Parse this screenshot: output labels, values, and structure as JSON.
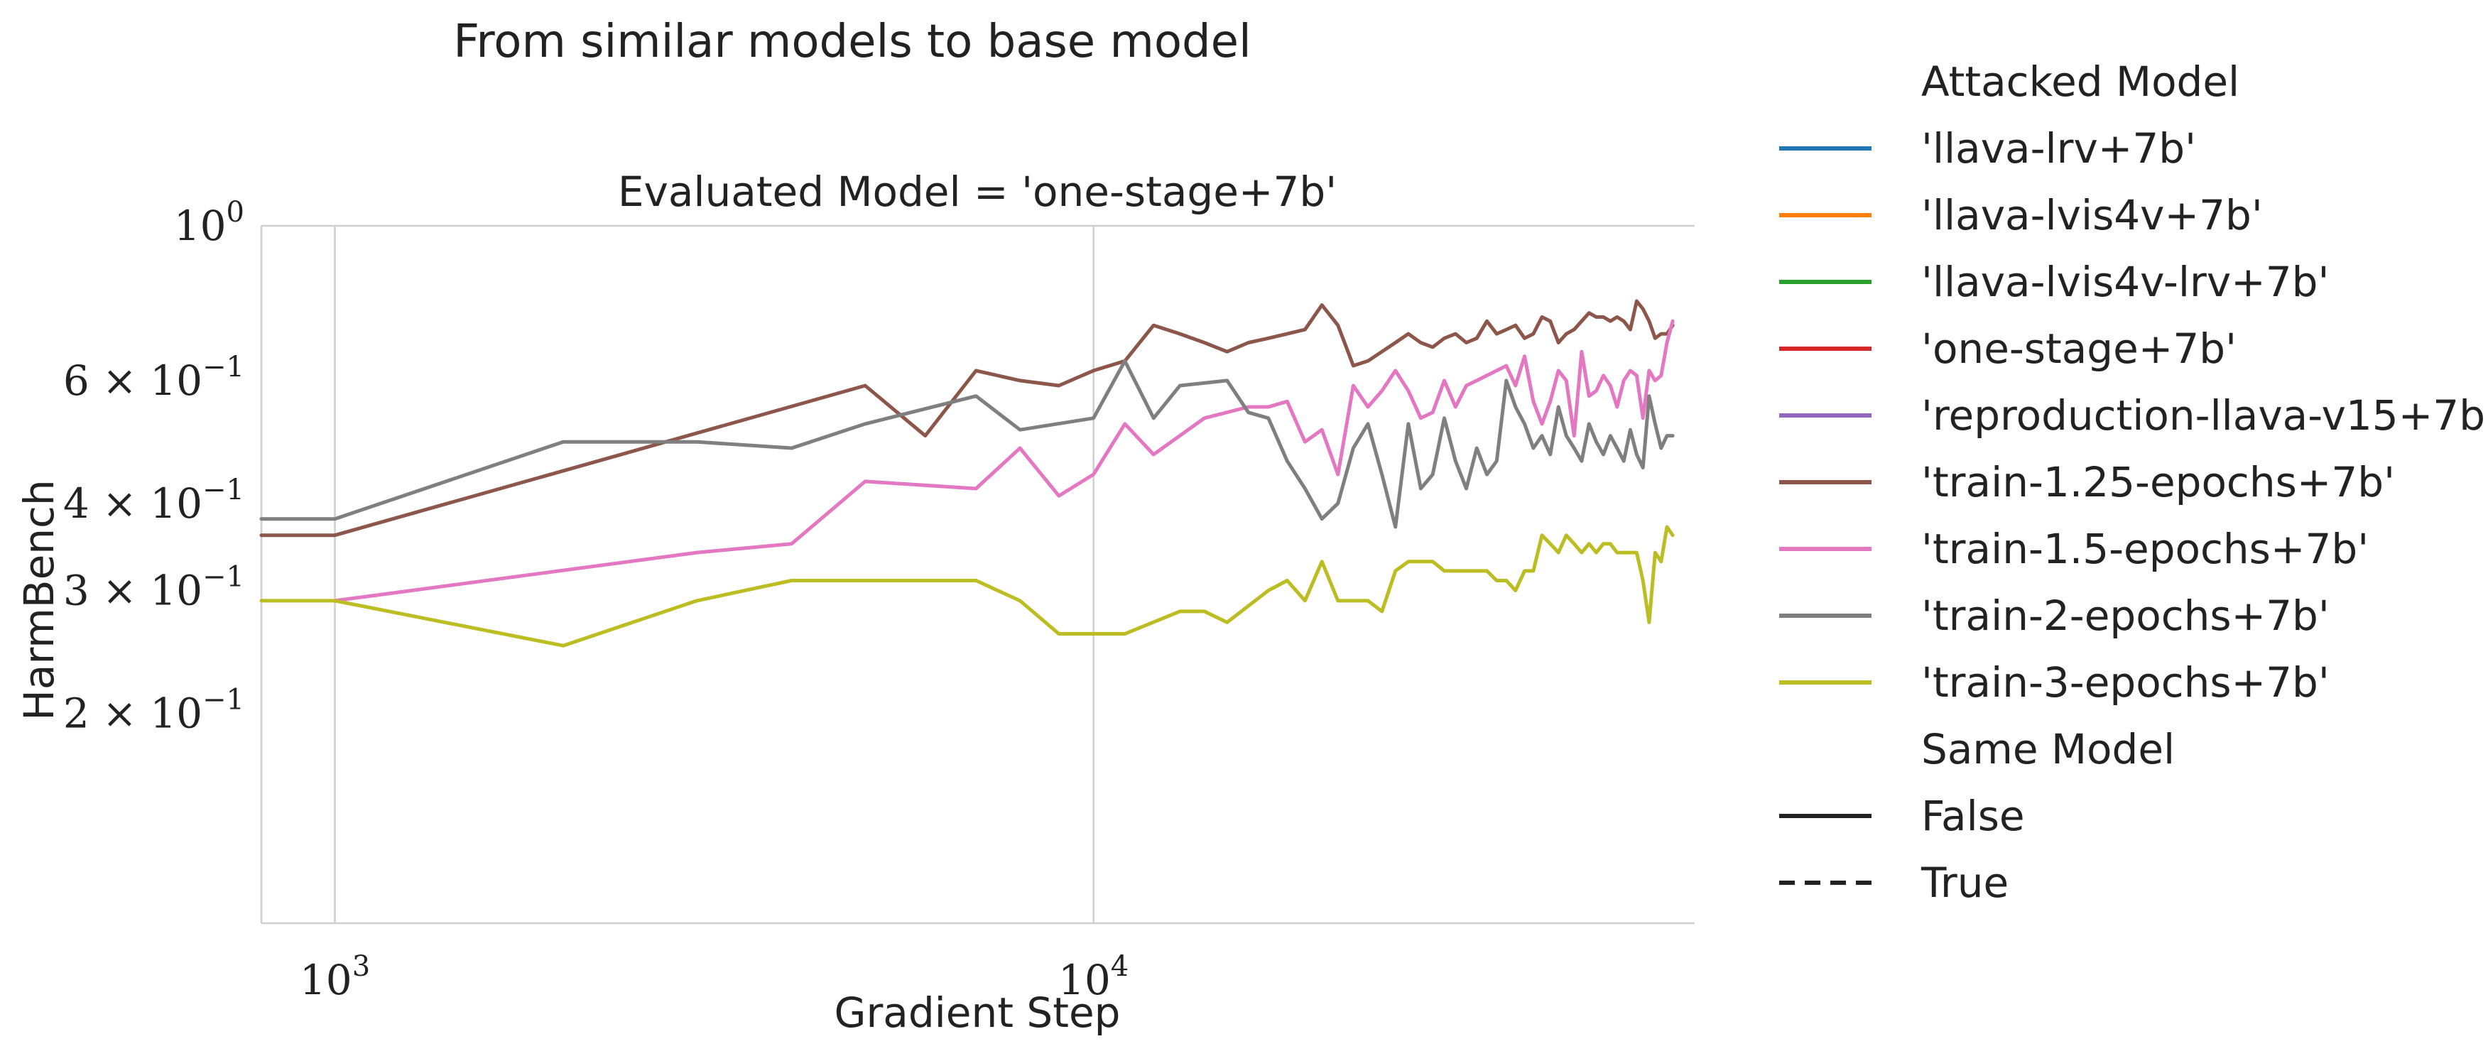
{
  "chart_data": {
    "type": "line",
    "title": "From similar models to base model",
    "subtitle": "Evaluated Model = 'one-stage+7b'",
    "xlabel": "Gradient Step",
    "ylabel": "HarmBench",
    "x_scale": "log",
    "y_scale": "log",
    "xlim": [
      800,
      62000
    ],
    "ylim": [
      0.1,
      1.0
    ],
    "x_ticks": [
      {
        "value": 1000,
        "base": "10",
        "exp": "3"
      },
      {
        "value": 10000,
        "base": "10",
        "exp": "4"
      }
    ],
    "y_ticks": [
      {
        "value": 1.0,
        "mantissa": "",
        "base": "10",
        "exp": "0"
      },
      {
        "value": 0.6,
        "mantissa": "6",
        "base": "10",
        "exp": "−1"
      },
      {
        "value": 0.4,
        "mantissa": "4",
        "base": "10",
        "exp": "−1"
      },
      {
        "value": 0.3,
        "mantissa": "3",
        "base": "10",
        "exp": "−1"
      },
      {
        "value": 0.2,
        "mantissa": "2",
        "base": "10",
        "exp": "−1"
      }
    ],
    "grid": "vertical-major",
    "legend_placement": "outside-right",
    "legend": {
      "hue_title": "Attacked Model",
      "hue_entries": [
        {
          "label": "'llava-lrv+7b'",
          "color": "#1f77b4"
        },
        {
          "label": "'llava-lvis4v+7b'",
          "color": "#ff7f0e"
        },
        {
          "label": "'llava-lvis4v-lrv+7b'",
          "color": "#2ca02c"
        },
        {
          "label": "'one-stage+7b'",
          "color": "#d62728"
        },
        {
          "label": "'reproduction-llava-v15+7b'",
          "color": "#9467bd"
        },
        {
          "label": "'train-1.25-epochs+7b'",
          "color": "#8c564b"
        },
        {
          "label": "'train-1.5-epochs+7b'",
          "color": "#e377c2"
        },
        {
          "label": "'train-2-epochs+7b'",
          "color": "#7f7f7f"
        },
        {
          "label": "'train-3-epochs+7b'",
          "color": "#bcbd22"
        }
      ],
      "style_title": "Same Model",
      "style_entries": [
        {
          "label": "False",
          "dash": "solid"
        },
        {
          "label": "True",
          "dash": "dashed"
        }
      ]
    },
    "series": [
      {
        "color": "#8c564b",
        "x": [
          800,
          1000,
          5000,
          6000,
          7000,
          8000,
          9000,
          10000,
          11000,
          12000,
          13000,
          14000,
          15000,
          16000,
          17000,
          18000,
          19000,
          20000,
          21000,
          22000,
          23000,
          24000,
          25000,
          26000,
          27000,
          28000,
          29000,
          30000,
          31000,
          32000,
          33000,
          34000,
          35000,
          36000,
          37000,
          38000,
          39000,
          40000,
          41000,
          42000,
          43000,
          44000,
          45000,
          46000,
          47000,
          48000,
          49000,
          50000,
          51000,
          52000,
          53000,
          54000,
          55000,
          56000,
          57000,
          58000
        ],
        "y": [
          0.36,
          0.36,
          0.59,
          0.5,
          0.62,
          0.6,
          0.59,
          0.62,
          0.64,
          0.72,
          0.7,
          0.68,
          0.66,
          0.68,
          0.69,
          0.7,
          0.71,
          0.77,
          0.72,
          0.63,
          0.64,
          0.66,
          0.68,
          0.7,
          0.68,
          0.67,
          0.69,
          0.7,
          0.68,
          0.69,
          0.73,
          0.7,
          0.71,
          0.72,
          0.69,
          0.7,
          0.74,
          0.73,
          0.68,
          0.7,
          0.71,
          0.73,
          0.75,
          0.74,
          0.74,
          0.73,
          0.74,
          0.73,
          0.71,
          0.78,
          0.76,
          0.73,
          0.69,
          0.7,
          0.7,
          0.72
        ]
      },
      {
        "color": "#e377c2",
        "x": [
          1000,
          3000,
          4000,
          5000,
          7000,
          8000,
          9000,
          10000,
          11000,
          12000,
          14000,
          16000,
          17000,
          18000,
          19000,
          20000,
          21000,
          22000,
          23000,
          24000,
          25000,
          26000,
          27000,
          28000,
          29000,
          30000,
          31000,
          32000,
          33000,
          34000,
          35000,
          36000,
          37000,
          38000,
          39000,
          40000,
          41000,
          42000,
          43000,
          44000,
          45000,
          46000,
          47000,
          48000,
          49000,
          50000,
          51000,
          52000,
          53000,
          54000,
          55000,
          56000,
          57000,
          58000
        ],
        "y": [
          0.29,
          0.34,
          0.35,
          0.43,
          0.42,
          0.48,
          0.41,
          0.44,
          0.52,
          0.47,
          0.53,
          0.55,
          0.55,
          0.56,
          0.49,
          0.51,
          0.44,
          0.59,
          0.55,
          0.58,
          0.62,
          0.58,
          0.53,
          0.54,
          0.6,
          0.55,
          0.59,
          0.6,
          0.61,
          0.62,
          0.63,
          0.59,
          0.65,
          0.56,
          0.52,
          0.56,
          0.62,
          0.6,
          0.5,
          0.66,
          0.57,
          0.58,
          0.61,
          0.59,
          0.55,
          0.6,
          0.62,
          0.61,
          0.53,
          0.62,
          0.6,
          0.61,
          0.68,
          0.73
        ]
      },
      {
        "color": "#7f7f7f",
        "x": [
          800,
          1000,
          2000,
          3000,
          4000,
          5000,
          7000,
          8000,
          10000,
          11000,
          12000,
          13000,
          15000,
          16000,
          17000,
          18000,
          19000,
          20000,
          21000,
          22000,
          23000,
          24000,
          25000,
          26000,
          27000,
          28000,
          29000,
          30000,
          31000,
          32000,
          33000,
          34000,
          35000,
          36000,
          37000,
          38000,
          39000,
          40000,
          41000,
          42000,
          43000,
          44000,
          45000,
          46000,
          47000,
          48000,
          49000,
          50000,
          51000,
          52000,
          53000,
          54000,
          55000,
          56000,
          57000,
          58000
        ],
        "y": [
          0.38,
          0.38,
          0.49,
          0.49,
          0.48,
          0.52,
          0.57,
          0.51,
          0.53,
          0.64,
          0.53,
          0.59,
          0.6,
          0.54,
          0.53,
          0.46,
          0.42,
          0.38,
          0.4,
          0.48,
          0.52,
          0.44,
          0.37,
          0.52,
          0.42,
          0.44,
          0.53,
          0.46,
          0.42,
          0.48,
          0.44,
          0.46,
          0.6,
          0.55,
          0.52,
          0.48,
          0.5,
          0.47,
          0.55,
          0.5,
          0.48,
          0.46,
          0.52,
          0.49,
          0.47,
          0.5,
          0.48,
          0.46,
          0.51,
          0.47,
          0.45,
          0.57,
          0.52,
          0.48,
          0.5,
          0.5
        ]
      },
      {
        "color": "#bcbd22",
        "x": [
          800,
          1000,
          2000,
          3000,
          4000,
          5000,
          6000,
          7000,
          8000,
          9000,
          10000,
          11000,
          13000,
          14000,
          15000,
          17000,
          18000,
          19000,
          20000,
          21000,
          22000,
          23000,
          24000,
          25000,
          26000,
          27000,
          28000,
          29000,
          30000,
          31000,
          32000,
          33000,
          34000,
          35000,
          36000,
          37000,
          38000,
          39000,
          40000,
          41000,
          42000,
          43000,
          44000,
          45000,
          46000,
          47000,
          48000,
          49000,
          50000,
          51000,
          52000,
          53000,
          54000,
          55000,
          56000,
          57000,
          58000
        ],
        "y": [
          0.29,
          0.29,
          0.25,
          0.29,
          0.31,
          0.31,
          0.31,
          0.31,
          0.29,
          0.26,
          0.26,
          0.26,
          0.28,
          0.28,
          0.27,
          0.3,
          0.31,
          0.29,
          0.33,
          0.29,
          0.29,
          0.29,
          0.28,
          0.32,
          0.33,
          0.33,
          0.33,
          0.32,
          0.32,
          0.32,
          0.32,
          0.32,
          0.31,
          0.31,
          0.3,
          0.32,
          0.32,
          0.36,
          0.35,
          0.34,
          0.36,
          0.35,
          0.34,
          0.35,
          0.34,
          0.35,
          0.35,
          0.34,
          0.34,
          0.34,
          0.34,
          0.31,
          0.27,
          0.34,
          0.33,
          0.37,
          0.36
        ]
      }
    ]
  }
}
